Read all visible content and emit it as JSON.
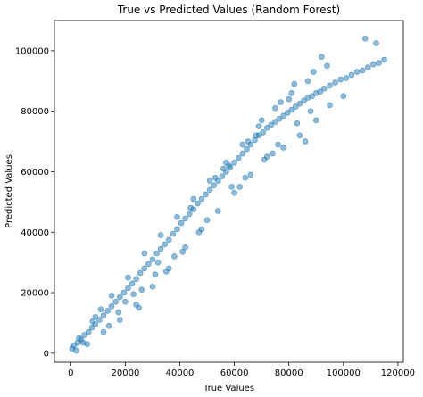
{
  "chart_data": {
    "type": "scatter",
    "title": "True vs Predicted Values (Random Forest)",
    "xlabel": "True Values",
    "ylabel": "Predicted Values",
    "xlim": [
      -6000,
      122000
    ],
    "ylim": [
      -3000,
      110000
    ],
    "xticks": [
      0,
      20000,
      40000,
      60000,
      80000,
      100000,
      120000
    ],
    "yticks": [
      0,
      20000,
      40000,
      60000,
      80000,
      100000
    ],
    "xtick_labels": [
      "0",
      "20000",
      "40000",
      "60000",
      "80000",
      "100000",
      "120000"
    ],
    "ytick_labels": [
      "0",
      "20000",
      "40000",
      "60000",
      "80000",
      "100000"
    ],
    "grid": false,
    "series": [
      {
        "color": "#1f77b4",
        "x": [
          500,
          1200,
          2500,
          3800,
          5000,
          6500,
          7800,
          9000,
          10500,
          12000,
          13500,
          15000,
          16500,
          18000,
          19500,
          21000,
          22500,
          24000,
          25500,
          27000,
          28500,
          30000,
          31500,
          33000,
          34500,
          36000,
          37500,
          39000,
          40500,
          42000,
          43500,
          45000,
          46500,
          48000,
          49500,
          51000,
          52500,
          54000,
          55500,
          57000,
          58500,
          60000,
          61500,
          63000,
          64500,
          66000,
          67500,
          69000,
          70500,
          72000,
          73500,
          75000,
          76500,
          78000,
          79500,
          81000,
          82500,
          84000,
          85500,
          87000,
          88500,
          90000,
          91500,
          93000,
          95000,
          97000,
          99000,
          101000,
          103000,
          105000,
          107000,
          109000,
          111000,
          113000,
          115000,
          3000,
          6000,
          9000,
          12000,
          15000,
          18000,
          21000,
          24000,
          27000,
          30000,
          33000,
          36000,
          39000,
          42000,
          45000,
          48000,
          51000,
          54000,
          57000,
          60000,
          63000,
          66000,
          69000,
          72000,
          75000,
          78000,
          81000,
          84000,
          87000,
          90000,
          2000,
          8000,
          14000,
          20000,
          26000,
          32000,
          38000,
          44000,
          50000,
          56000,
          62000,
          68000,
          74000,
          80000,
          86000,
          92000,
          4500,
          11000,
          17500,
          23000,
          35000,
          47000,
          53000,
          59000,
          65000,
          71000,
          77000,
          83000,
          89000,
          95000,
          25000,
          31000,
          41000,
          58000,
          64000,
          70000,
          76000,
          82000,
          88000,
          94000,
          100000,
          108000,
          112000
        ],
        "y": [
          1500,
          2500,
          3500,
          4500,
          6000,
          7000,
          8500,
          9500,
          11000,
          12500,
          14000,
          15500,
          17000,
          18500,
          20000,
          21500,
          23000,
          24500,
          26500,
          28000,
          29500,
          31000,
          33000,
          34500,
          36000,
          37500,
          39500,
          41000,
          43000,
          44500,
          46000,
          47500,
          49500,
          51000,
          52500,
          54000,
          55500,
          57000,
          58500,
          60000,
          61500,
          63000,
          64500,
          66000,
          67500,
          69000,
          70500,
          72000,
          73000,
          74500,
          75500,
          76500,
          77500,
          78500,
          79500,
          80500,
          81500,
          82500,
          83500,
          84500,
          85000,
          86000,
          86500,
          87500,
          88500,
          89500,
          90500,
          91000,
          92000,
          93000,
          93500,
          94500,
          95500,
          96000,
          97000,
          5000,
          3000,
          12000,
          7000,
          19000,
          11000,
          25000,
          16000,
          33000,
          22000,
          39000,
          28000,
          45000,
          35000,
          51000,
          41000,
          57000,
          47000,
          63000,
          53000,
          69000,
          59000,
          75000,
          65000,
          81000,
          68000,
          86000,
          72000,
          90000,
          77000,
          800,
          10500,
          9000,
          17000,
          21000,
          30000,
          32000,
          48000,
          44000,
          61000,
          55000,
          72000,
          66000,
          84000,
          70000,
          98000,
          3500,
          14500,
          13500,
          19500,
          27000,
          40000,
          58000,
          55000,
          70000,
          64000,
          83000,
          76000,
          93000,
          82000,
          15000,
          26000,
          33500,
          62000,
          58000,
          77000,
          69000,
          89000,
          80000,
          95000,
          85000,
          104000,
          102500
        ]
      }
    ]
  }
}
